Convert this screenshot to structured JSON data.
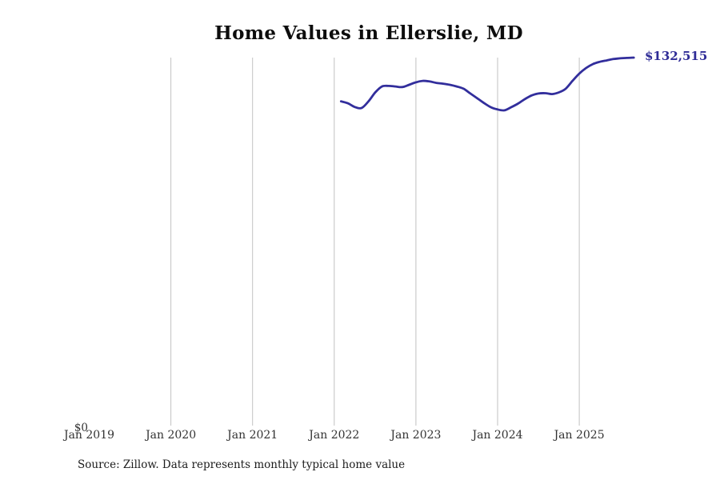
{
  "chart_data": {
    "type": "line",
    "title": "Home Values in Ellerslie, MD",
    "x_ticks": [
      "Jan 2019",
      "Jan 2020",
      "Jan 2021",
      "Jan 2022",
      "Jan 2023",
      "Jan 2024",
      "Jan 2025"
    ],
    "y_zero_label": "$0",
    "end_label": "$132,515",
    "ylim": [
      0,
      132515
    ],
    "grid": "vertical-only",
    "legend": "none",
    "line_color": "#322e9c",
    "gridline_color": "#c2c2c2",
    "series": [
      {
        "name": "Monthly typical home value",
        "start": "Feb 2022",
        "end": "Sep 2025",
        "frequency": "monthly",
        "values": [
          116900,
          116200,
          114900,
          114500,
          116800,
          120000,
          122200,
          122400,
          122200,
          122000,
          122800,
          123700,
          124200,
          124000,
          123500,
          123200,
          122800,
          122200,
          121400,
          119700,
          118000,
          116300,
          114800,
          114000,
          113700,
          114800,
          116100,
          117700,
          119000,
          119700,
          119800,
          119500,
          120100,
          121400,
          124200,
          126800,
          128800,
          130200,
          131000,
          131500,
          132000,
          132250,
          132400,
          132515
        ]
      }
    ]
  },
  "footer": {
    "source": "Source: Zillow. Data represents monthly typical home value"
  }
}
